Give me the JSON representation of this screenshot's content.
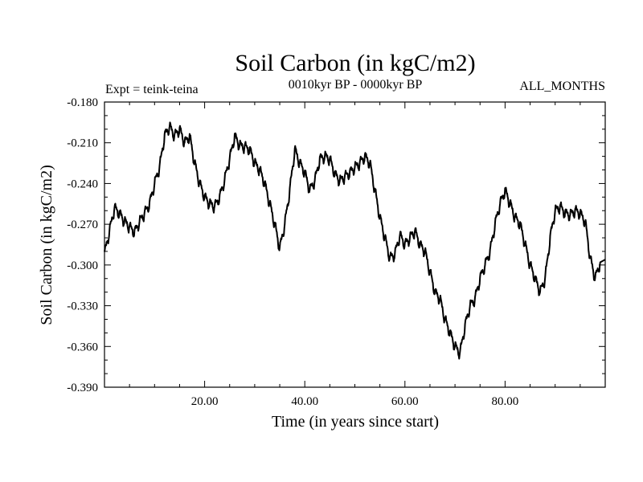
{
  "chart_data": {
    "type": "line",
    "title": "Soil Carbon (in kgC/m2)",
    "subtitle_left": "Expt = teink-teina",
    "subtitle_center": "0010kyr BP - 0000kyr BP",
    "subtitle_right": "ALL_MONTHS",
    "xlabel": "Time (in years since start)",
    "ylabel": "Soil Carbon (in kgC/m2)",
    "xlim": [
      0,
      100
    ],
    "ylim": [
      -0.39,
      -0.18
    ],
    "x_ticks": [
      20,
      40,
      60,
      80
    ],
    "x_tick_labels": [
      "20.00",
      "40.00",
      "60.00",
      "80.00"
    ],
    "y_ticks": [
      -0.18,
      -0.21,
      -0.24,
      -0.27,
      -0.3,
      -0.33,
      -0.36,
      -0.39
    ],
    "y_tick_labels": [
      "-0.180",
      "-0.210",
      "-0.240",
      "-0.270",
      "-0.300",
      "-0.330",
      "-0.360",
      "-0.390"
    ],
    "grid": false,
    "series": [
      {
        "name": "teink-teina",
        "x": [
          0,
          1,
          2,
          3,
          4,
          5,
          6,
          7,
          8,
          9,
          10,
          11,
          12,
          13,
          14,
          15,
          16,
          17,
          18,
          19,
          20,
          21,
          22,
          23,
          24,
          25,
          26,
          27,
          28,
          29,
          30,
          31,
          32,
          33,
          34,
          35,
          36,
          37,
          38,
          39,
          40,
          41,
          42,
          43,
          44,
          45,
          46,
          47,
          48,
          49,
          50,
          51,
          52,
          53,
          54,
          55,
          56,
          57,
          58,
          59,
          60,
          61,
          62,
          63,
          64,
          65,
          66,
          67,
          68,
          69,
          70,
          71,
          72,
          73,
          74,
          75,
          76,
          77,
          78,
          79,
          80,
          81,
          82,
          83,
          84,
          85,
          86,
          87,
          88,
          89,
          90,
          91,
          92,
          93,
          94,
          95,
          96,
          97,
          98,
          99
        ],
        "values": [
          -0.292,
          -0.275,
          -0.258,
          -0.262,
          -0.268,
          -0.272,
          -0.276,
          -0.268,
          -0.262,
          -0.255,
          -0.24,
          -0.228,
          -0.205,
          -0.198,
          -0.205,
          -0.2,
          -0.21,
          -0.205,
          -0.225,
          -0.24,
          -0.25,
          -0.255,
          -0.257,
          -0.25,
          -0.237,
          -0.222,
          -0.205,
          -0.212,
          -0.213,
          -0.215,
          -0.225,
          -0.23,
          -0.24,
          -0.255,
          -0.27,
          -0.288,
          -0.27,
          -0.245,
          -0.215,
          -0.225,
          -0.232,
          -0.245,
          -0.238,
          -0.222,
          -0.22,
          -0.222,
          -0.233,
          -0.238,
          -0.235,
          -0.232,
          -0.228,
          -0.225,
          -0.22,
          -0.225,
          -0.245,
          -0.265,
          -0.28,
          -0.295,
          -0.292,
          -0.278,
          -0.285,
          -0.28,
          -0.275,
          -0.285,
          -0.29,
          -0.305,
          -0.32,
          -0.325,
          -0.34,
          -0.35,
          -0.36,
          -0.365,
          -0.345,
          -0.33,
          -0.325,
          -0.31,
          -0.3,
          -0.29,
          -0.27,
          -0.255,
          -0.245,
          -0.255,
          -0.265,
          -0.27,
          -0.285,
          -0.3,
          -0.31,
          -0.32,
          -0.31,
          -0.28,
          -0.26,
          -0.257,
          -0.262,
          -0.263,
          -0.26,
          -0.262,
          -0.268,
          -0.295,
          -0.31,
          -0.298
        ]
      }
    ]
  }
}
